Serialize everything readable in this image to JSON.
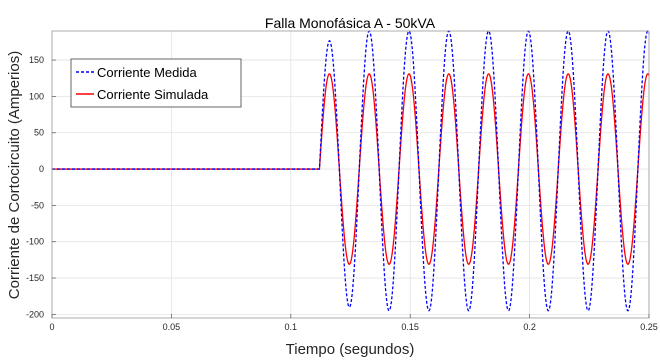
{
  "chart_data": {
    "type": "line",
    "title": "Falla Monofásica A - 50kVA",
    "xlabel": "Tiempo (segundos)",
    "ylabel": "Corriente de Cortocircuito (Amperios)",
    "xlim": [
      0,
      0.25
    ],
    "ylim": [
      -205,
      190
    ],
    "x_ticks": [
      0,
      0.05,
      0.1,
      0.15,
      0.2,
      0.25
    ],
    "x_tick_labels": [
      "0",
      "0.05",
      "0.1",
      "0.15",
      "0.2",
      "0.25"
    ],
    "y_ticks": [
      -200,
      -150,
      -100,
      -50,
      0,
      50,
      100,
      150
    ],
    "y_tick_labels": [
      "-200",
      "-150",
      "-100",
      "-50",
      "0",
      "50",
      "100",
      "150"
    ],
    "grid": true,
    "legend_position": "top-left",
    "fault_start_time": 0.112,
    "frequency_hz": 60,
    "series": [
      {
        "name": "Corriente Medida",
        "color": "#0000ff",
        "line_style": "dashed",
        "pre_fault_value": 0,
        "peak_positive": 190,
        "peak_negative": -195,
        "first_peak_positive": 173,
        "first_peak_negative": -182
      },
      {
        "name": "Corriente Simulada",
        "color": "#ff0000",
        "line_style": "solid",
        "pre_fault_value": 0,
        "peak_positive": 131,
        "peak_negative": -131,
        "first_peak_positive": 131,
        "first_peak_negative": -131
      }
    ]
  }
}
